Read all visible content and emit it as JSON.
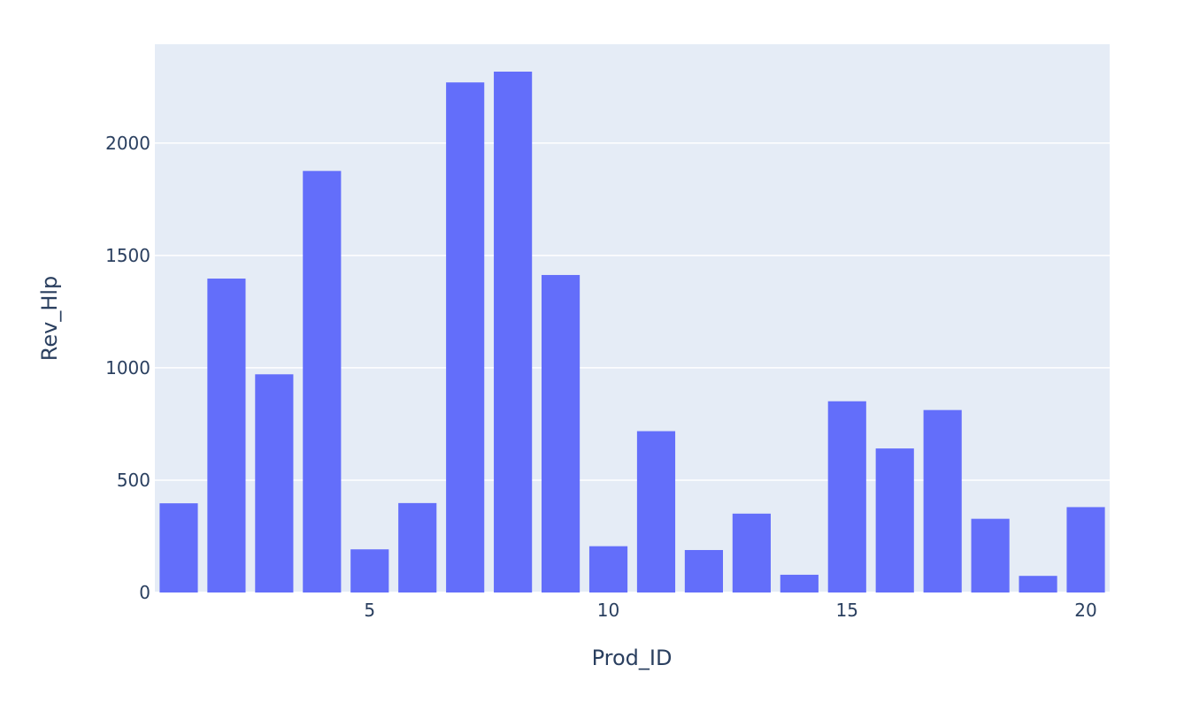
{
  "chart_data": {
    "type": "bar",
    "x": [
      1,
      2,
      3,
      4,
      5,
      6,
      7,
      8,
      9,
      10,
      11,
      12,
      13,
      14,
      15,
      16,
      17,
      18,
      19,
      20
    ],
    "values": [
      397,
      1397,
      971,
      1876,
      192,
      398,
      2270,
      2318,
      1413,
      206,
      718,
      189,
      351,
      79,
      851,
      641,
      812,
      328,
      74,
      380
    ],
    "xlabel": "Prod_ID",
    "ylabel": "Rev_Hlp",
    "x_ticks": [
      5,
      10,
      15,
      20
    ],
    "y_ticks": [
      0,
      500,
      1000,
      1500,
      2000
    ],
    "xlim": [
      0.5,
      20.5
    ],
    "ylim": [
      0,
      2440
    ],
    "grid": true,
    "legend": false,
    "colors": {
      "bar": "#636efa",
      "plot_background": "#e5ecf6",
      "grid": "#ffffff",
      "text": "#2a3f5f"
    }
  }
}
